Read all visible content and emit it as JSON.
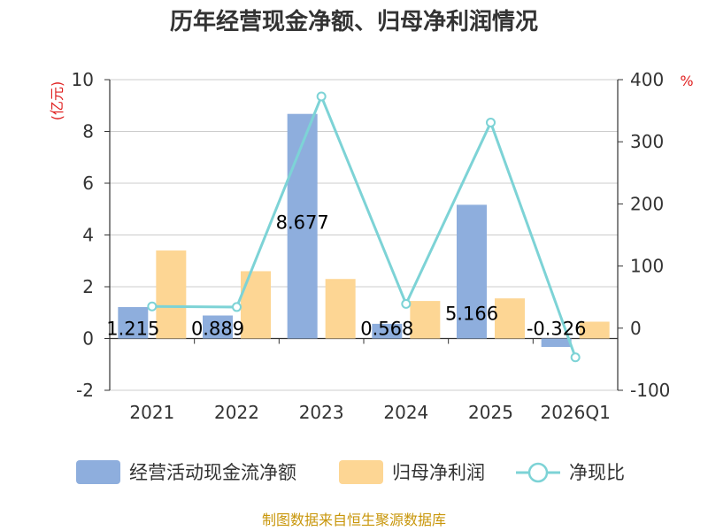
{
  "chart_data": {
    "type": "bar",
    "title": "历年经营现金净额、归母净利润情况",
    "categories": [
      "2021",
      "2022",
      "2023",
      "2024",
      "2025",
      "2026Q1"
    ],
    "series": [
      {
        "name": "经营活动现金流净额",
        "kind": "bar",
        "axis": "left",
        "values": [
          1.215,
          0.889,
          8.677,
          0.568,
          5.166,
          -0.326
        ]
      },
      {
        "name": "归母净利润",
        "kind": "bar",
        "axis": "left",
        "values": [
          3.4,
          2.6,
          2.3,
          1.45,
          1.55,
          0.65
        ]
      },
      {
        "name": "净现比",
        "kind": "line",
        "axis": "right",
        "values": [
          35,
          34,
          373,
          39,
          331,
          -47
        ]
      }
    ],
    "data_labels": [
      "1.215",
      "0.889",
      "8.677",
      "0.568",
      "5.166",
      "-0.326"
    ],
    "y_left": {
      "unit": "(亿元)",
      "ticks": [
        "10",
        "8",
        "6",
        "4",
        "2",
        "0",
        "-2"
      ],
      "ylim": [
        -2,
        10
      ]
    },
    "y_right": {
      "unit": "%",
      "ticks": [
        "400",
        "300",
        "200",
        "100",
        "0",
        "-100"
      ],
      "ylim": [
        -100,
        400
      ]
    },
    "grid": true,
    "legend_position": "bottom",
    "colors": {
      "cash_flow": "#8eaedd",
      "net_profit": "#fdd694",
      "ratio_line": "#7dd3d6",
      "unit_left": "#e02020",
      "unit_right": "#e02020",
      "source": "#c8960a"
    }
  },
  "source": "制图数据来自恒生聚源数据库"
}
